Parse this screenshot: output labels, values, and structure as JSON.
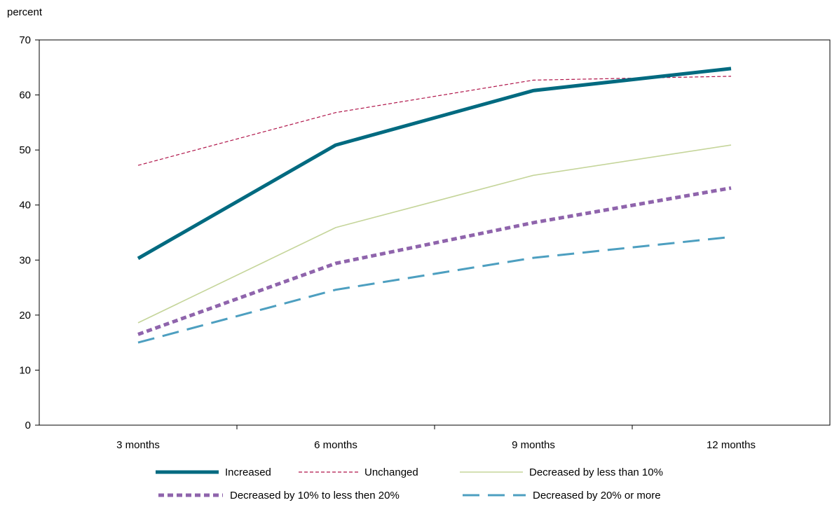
{
  "chart_data": {
    "type": "line",
    "title": "",
    "ylabel": "percent",
    "xlabel": "",
    "categories": [
      "3 months",
      "6 months",
      "9 months",
      "12 months"
    ],
    "ylim": [
      0,
      70
    ],
    "yticks": [
      0,
      10,
      20,
      30,
      40,
      50,
      60,
      70
    ],
    "grid": false,
    "legend_position": "bottom",
    "series": [
      {
        "name": "Increased",
        "values": [
          30.3,
          50.9,
          60.8,
          64.8
        ],
        "color": "#006a80",
        "style": "solid-thick"
      },
      {
        "name": "Unchanged",
        "values": [
          47.2,
          56.8,
          62.7,
          63.4
        ],
        "color": "#b0154a",
        "style": "dashed-thin"
      },
      {
        "name": "Decreased by less than 10%",
        "values": [
          18.6,
          35.9,
          45.4,
          50.9
        ],
        "color": "#c5d59a",
        "style": "solid-thin"
      },
      {
        "name": "Decreased by 10% to less then 20%",
        "values": [
          16.5,
          29.4,
          36.8,
          43.1
        ],
        "color": "#8f64ac",
        "style": "dotted-thick"
      },
      {
        "name": "Decreased by 20% or more",
        "values": [
          15.0,
          24.6,
          30.4,
          34.2
        ],
        "color": "#4d9fc0",
        "style": "dashed-long"
      }
    ]
  }
}
